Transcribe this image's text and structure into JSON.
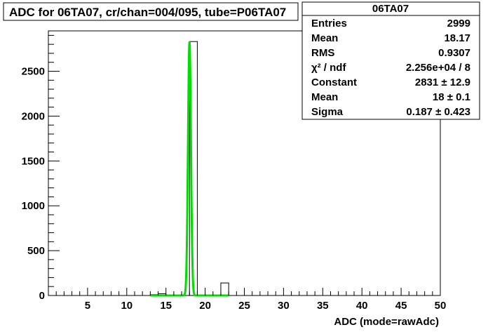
{
  "chart_data": {
    "type": "bar",
    "title": "ADC for 06TA07,  cr/chan=004/095,  tube=P06TA07",
    "xlabel": "ADC (mode=rawAdc)",
    "ylabel": "",
    "xlim": [
      0,
      50
    ],
    "ylim": [
      0,
      2950
    ],
    "xticks": [
      5,
      10,
      15,
      20,
      25,
      30,
      35,
      40,
      45,
      50
    ],
    "yticks": [
      0,
      500,
      1000,
      1500,
      2000,
      2500
    ],
    "bins": [
      {
        "x0": 13,
        "x1": 14,
        "value": 10
      },
      {
        "x0": 14,
        "x1": 15,
        "value": 20
      },
      {
        "x0": 17,
        "x1": 18,
        "value": 0
      },
      {
        "x0": 18,
        "x1": 19,
        "value": 2831
      },
      {
        "x0": 21,
        "x1": 22,
        "value": 0
      },
      {
        "x0": 22,
        "x1": 23,
        "value": 140
      }
    ],
    "fit": {
      "type": "gaussian",
      "constant": 2831,
      "mean": 18,
      "sigma": 0.187,
      "range": [
        13,
        23
      ],
      "color": "#00dd00"
    },
    "stats": {
      "name": "06TA07",
      "rows": [
        {
          "label": "Entries",
          "value": "2999"
        },
        {
          "label": "Mean",
          "value": "18.17"
        },
        {
          "label": "RMS",
          "value": "0.9307"
        },
        {
          "label": "χ² / ndf",
          "value": "2.256e+04 / 8"
        },
        {
          "label": "Constant",
          "value": "2831 ± 12.9"
        },
        {
          "label": "Mean",
          "value": "18 ± 0.1"
        },
        {
          "label": "Sigma",
          "value": "0.187 ± 0.423"
        }
      ]
    }
  }
}
